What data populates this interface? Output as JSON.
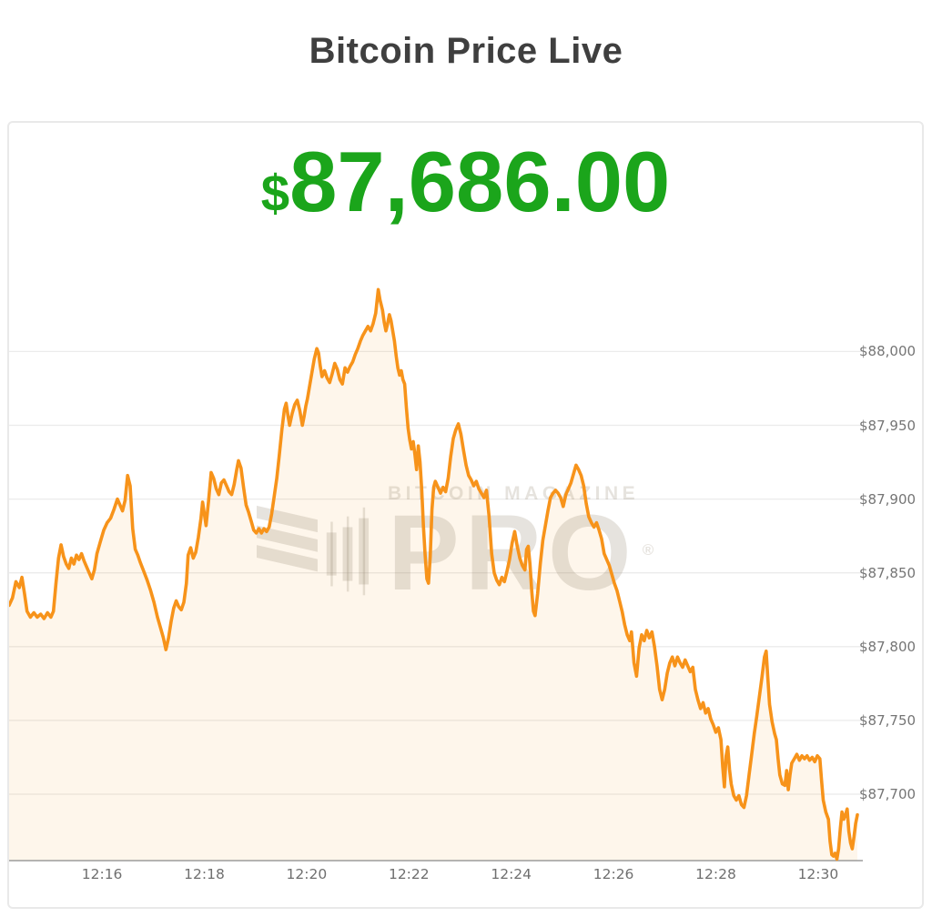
{
  "page": {
    "title": "Bitcoin Price Live"
  },
  "price": {
    "currency_symbol": "$",
    "value": "87,686.00"
  },
  "watermark": {
    "line1": "BITCOIN MAGAZINE",
    "line2": "PRO",
    "registered": "®"
  },
  "colors": {
    "price_green": "#1ba51b",
    "line_orange": "#f7931a",
    "area_fill": "rgba(247,147,26,0.085)",
    "grid": "#ebebeb",
    "axis": "#9b9b9b",
    "tick_text": "#757575",
    "title_text": "#3f3f3f"
  },
  "chart_data": {
    "type": "line",
    "title": "Bitcoin Price Live",
    "current_price_usd": 87686.0,
    "x_axis": {
      "unit": "time (HH:MM), seconds counted from 12:14:00",
      "t_domain": [
        11,
        1006
      ],
      "ticks": [
        {
          "t": 120,
          "label": "12:16"
        },
        {
          "t": 240,
          "label": "12:18"
        },
        {
          "t": 360,
          "label": "12:20"
        },
        {
          "t": 480,
          "label": "12:22"
        },
        {
          "t": 600,
          "label": "12:24"
        },
        {
          "t": 720,
          "label": "12:26"
        },
        {
          "t": 840,
          "label": "12:28"
        },
        {
          "t": 960,
          "label": "12:30"
        }
      ]
    },
    "y_axis": {
      "unit": "USD",
      "price_at_top": 88155,
      "price_at_bottom": 87655,
      "ticks": [
        {
          "value": 88000,
          "label": "$88,000"
        },
        {
          "value": 87950,
          "label": "$87,950"
        },
        {
          "value": 87900,
          "label": "$87,900"
        },
        {
          "value": 87850,
          "label": "$87,850"
        },
        {
          "value": 87800,
          "label": "$87,800"
        },
        {
          "value": 87750,
          "label": "$87,750"
        },
        {
          "value": 87700,
          "label": "$87,700"
        }
      ]
    },
    "legend": "none",
    "grid": "horizontal-only",
    "points": [
      [
        11,
        87828
      ],
      [
        15,
        87833
      ],
      [
        19,
        87844
      ],
      [
        23,
        87840
      ],
      [
        26,
        87847
      ],
      [
        29,
        87836
      ],
      [
        32,
        87824
      ],
      [
        36,
        87820
      ],
      [
        40,
        87823
      ],
      [
        44,
        87820
      ],
      [
        48,
        87822
      ],
      [
        52,
        87819
      ],
      [
        56,
        87823
      ],
      [
        60,
        87820
      ],
      [
        63,
        87824
      ],
      [
        66,
        87843
      ],
      [
        69,
        87860
      ],
      [
        72,
        87869
      ],
      [
        75,
        87861
      ],
      [
        78,
        87856
      ],
      [
        81,
        87853
      ],
      [
        84,
        87860
      ],
      [
        87,
        87856
      ],
      [
        90,
        87862
      ],
      [
        93,
        87859
      ],
      [
        96,
        87863
      ],
      [
        99,
        87858
      ],
      [
        102,
        87854
      ],
      [
        105,
        87850
      ],
      [
        108,
        87846
      ],
      [
        111,
        87852
      ],
      [
        114,
        87863
      ],
      [
        118,
        87871
      ],
      [
        122,
        87879
      ],
      [
        126,
        87884
      ],
      [
        130,
        87887
      ],
      [
        134,
        87893
      ],
      [
        138,
        87900
      ],
      [
        141,
        87896
      ],
      [
        144,
        87892
      ],
      [
        147,
        87899
      ],
      [
        150,
        87916
      ],
      [
        153,
        87909
      ],
      [
        156,
        87880
      ],
      [
        159,
        87866
      ],
      [
        162,
        87862
      ],
      [
        165,
        87857
      ],
      [
        169,
        87851
      ],
      [
        173,
        87845
      ],
      [
        177,
        87838
      ],
      [
        181,
        87830
      ],
      [
        185,
        87820
      ],
      [
        189,
        87812
      ],
      [
        192,
        87806
      ],
      [
        195,
        87798
      ],
      [
        198,
        87806
      ],
      [
        201,
        87817
      ],
      [
        204,
        87826
      ],
      [
        207,
        87831
      ],
      [
        210,
        87827
      ],
      [
        213,
        87825
      ],
      [
        216,
        87830
      ],
      [
        219,
        87843
      ],
      [
        221,
        87862
      ],
      [
        224,
        87867
      ],
      [
        227,
        87860
      ],
      [
        230,
        87864
      ],
      [
        233,
        87874
      ],
      [
        236,
        87887
      ],
      [
        238,
        87898
      ],
      [
        240,
        87890
      ],
      [
        242,
        87882
      ],
      [
        245,
        87899
      ],
      [
        248,
        87918
      ],
      [
        251,
        87914
      ],
      [
        254,
        87907
      ],
      [
        257,
        87903
      ],
      [
        260,
        87911
      ],
      [
        263,
        87913
      ],
      [
        266,
        87909
      ],
      [
        269,
        87905
      ],
      [
        272,
        87903
      ],
      [
        275,
        87910
      ],
      [
        278,
        87920
      ],
      [
        280,
        87926
      ],
      [
        283,
        87921
      ],
      [
        286,
        87908
      ],
      [
        289,
        87896
      ],
      [
        292,
        87891
      ],
      [
        295,
        87885
      ],
      [
        298,
        87879
      ],
      [
        301,
        87877
      ],
      [
        304,
        87880
      ],
      [
        307,
        87877
      ],
      [
        310,
        87880
      ],
      [
        313,
        87878
      ],
      [
        316,
        87881
      ],
      [
        319,
        87890
      ],
      [
        322,
        87902
      ],
      [
        325,
        87914
      ],
      [
        328,
        87930
      ],
      [
        331,
        87947
      ],
      [
        334,
        87961
      ],
      [
        336,
        87965
      ],
      [
        338,
        87957
      ],
      [
        340,
        87950
      ],
      [
        343,
        87958
      ],
      [
        346,
        87964
      ],
      [
        349,
        87967
      ],
      [
        352,
        87960
      ],
      [
        355,
        87950
      ],
      [
        357,
        87956
      ],
      [
        359,
        87963
      ],
      [
        361,
        87968
      ],
      [
        363,
        87975
      ],
      [
        366,
        87985
      ],
      [
        369,
        87995
      ],
      [
        372,
        88002
      ],
      [
        374,
        87999
      ],
      [
        376,
        87990
      ],
      [
        378,
        87983
      ],
      [
        381,
        87987
      ],
      [
        384,
        87982
      ],
      [
        387,
        87979
      ],
      [
        390,
        87985
      ],
      [
        393,
        87992
      ],
      [
        396,
        87988
      ],
      [
        399,
        87981
      ],
      [
        402,
        87978
      ],
      [
        405,
        87989
      ],
      [
        408,
        87986
      ],
      [
        411,
        87990
      ],
      [
        414,
        87993
      ],
      [
        417,
        87998
      ],
      [
        420,
        88002
      ],
      [
        423,
        88007
      ],
      [
        426,
        88011
      ],
      [
        429,
        88014
      ],
      [
        432,
        88017
      ],
      [
        435,
        88014
      ],
      [
        438,
        88019
      ],
      [
        441,
        88026
      ],
      [
        444,
        88042
      ],
      [
        446,
        88035
      ],
      [
        449,
        88028
      ],
      [
        451,
        88020
      ],
      [
        453,
        88014
      ],
      [
        455,
        88019
      ],
      [
        457,
        88025
      ],
      [
        459,
        88021
      ],
      [
        461,
        88014
      ],
      [
        463,
        88007
      ],
      [
        465,
        87997
      ],
      [
        467,
        87989
      ],
      [
        469,
        87984
      ],
      [
        471,
        87987
      ],
      [
        473,
        87981
      ],
      [
        475,
        87978
      ],
      [
        477,
        87962
      ],
      [
        479,
        87948
      ],
      [
        481,
        87940
      ],
      [
        483,
        87934
      ],
      [
        485,
        87939
      ],
      [
        487,
        87930
      ],
      [
        489,
        87920
      ],
      [
        491,
        87936
      ],
      [
        493,
        87925
      ],
      [
        495,
        87906
      ],
      [
        497,
        87882
      ],
      [
        499,
        87862
      ],
      [
        501,
        87846
      ],
      [
        503,
        87843
      ],
      [
        505,
        87861
      ],
      [
        507,
        87893
      ],
      [
        509,
        87908
      ],
      [
        511,
        87912
      ],
      [
        514,
        87908
      ],
      [
        517,
        87904
      ],
      [
        520,
        87908
      ],
      [
        523,
        87905
      ],
      [
        526,
        87914
      ],
      [
        529,
        87929
      ],
      [
        532,
        87941
      ],
      [
        535,
        87947
      ],
      [
        538,
        87951
      ],
      [
        541,
        87944
      ],
      [
        544,
        87933
      ],
      [
        547,
        87923
      ],
      [
        550,
        87916
      ],
      [
        553,
        87913
      ],
      [
        556,
        87909
      ],
      [
        559,
        87912
      ],
      [
        562,
        87907
      ],
      [
        565,
        87904
      ],
      [
        568,
        87901
      ],
      [
        571,
        87906
      ],
      [
        574,
        87888
      ],
      [
        577,
        87863
      ],
      [
        580,
        87850
      ],
      [
        583,
        87845
      ],
      [
        586,
        87842
      ],
      [
        589,
        87847
      ],
      [
        592,
        87844
      ],
      [
        595,
        87851
      ],
      [
        598,
        87859
      ],
      [
        601,
        87870
      ],
      [
        604,
        87878
      ],
      [
        607,
        87868
      ],
      [
        610,
        87860
      ],
      [
        613,
        87855
      ],
      [
        616,
        87852
      ],
      [
        618,
        87866
      ],
      [
        620,
        87868
      ],
      [
        622,
        87856
      ],
      [
        624,
        87838
      ],
      [
        626,
        87824
      ],
      [
        628,
        87821
      ],
      [
        631,
        87836
      ],
      [
        634,
        87856
      ],
      [
        637,
        87872
      ],
      [
        640,
        87882
      ],
      [
        643,
        87892
      ],
      [
        646,
        87901
      ],
      [
        649,
        87904
      ],
      [
        652,
        87906
      ],
      [
        655,
        87904
      ],
      [
        658,
        87901
      ],
      [
        661,
        87895
      ],
      [
        664,
        87903
      ],
      [
        667,
        87907
      ],
      [
        670,
        87911
      ],
      [
        673,
        87917
      ],
      [
        676,
        87923
      ],
      [
        679,
        87920
      ],
      [
        682,
        87916
      ],
      [
        685,
        87909
      ],
      [
        688,
        87897
      ],
      [
        691,
        87888
      ],
      [
        694,
        87884
      ],
      [
        697,
        87881
      ],
      [
        700,
        87884
      ],
      [
        703,
        87879
      ],
      [
        706,
        87873
      ],
      [
        709,
        87863
      ],
      [
        712,
        87859
      ],
      [
        715,
        87855
      ],
      [
        718,
        87849
      ],
      [
        721,
        87843
      ],
      [
        724,
        87838
      ],
      [
        727,
        87831
      ],
      [
        730,
        87824
      ],
      [
        733,
        87815
      ],
      [
        736,
        87808
      ],
      [
        739,
        87804
      ],
      [
        741,
        87810
      ],
      [
        744,
        87789
      ],
      [
        747,
        87780
      ],
      [
        750,
        87799
      ],
      [
        753,
        87808
      ],
      [
        756,
        87804
      ],
      [
        759,
        87811
      ],
      [
        762,
        87806
      ],
      [
        765,
        87810
      ],
      [
        768,
        87800
      ],
      [
        771,
        87787
      ],
      [
        774,
        87771
      ],
      [
        777,
        87764
      ],
      [
        780,
        87771
      ],
      [
        783,
        87782
      ],
      [
        786,
        87789
      ],
      [
        789,
        87793
      ],
      [
        792,
        87787
      ],
      [
        795,
        87793
      ],
      [
        798,
        87789
      ],
      [
        801,
        87786
      ],
      [
        804,
        87791
      ],
      [
        807,
        87787
      ],
      [
        810,
        87783
      ],
      [
        813,
        87786
      ],
      [
        816,
        87771
      ],
      [
        819,
        87764
      ],
      [
        822,
        87758
      ],
      [
        825,
        87762
      ],
      [
        828,
        87755
      ],
      [
        831,
        87758
      ],
      [
        834,
        87751
      ],
      [
        837,
        87747
      ],
      [
        840,
        87742
      ],
      [
        843,
        87745
      ],
      [
        846,
        87737
      ],
      [
        848,
        87719
      ],
      [
        850,
        87705
      ],
      [
        852,
        87726
      ],
      [
        854,
        87732
      ],
      [
        856,
        87717
      ],
      [
        858,
        87707
      ],
      [
        861,
        87699
      ],
      [
        864,
        87696
      ],
      [
        867,
        87699
      ],
      [
        870,
        87693
      ],
      [
        873,
        87691
      ],
      [
        876,
        87699
      ],
      [
        879,
        87713
      ],
      [
        882,
        87727
      ],
      [
        885,
        87741
      ],
      [
        888,
        87753
      ],
      [
        891,
        87766
      ],
      [
        894,
        87779
      ],
      [
        897,
        87793
      ],
      [
        899,
        87797
      ],
      [
        901,
        87779
      ],
      [
        903,
        87761
      ],
      [
        906,
        87749
      ],
      [
        909,
        87741
      ],
      [
        911,
        87737
      ],
      [
        913,
        87724
      ],
      [
        915,
        87713
      ],
      [
        918,
        87707
      ],
      [
        921,
        87706
      ],
      [
        923,
        87716
      ],
      [
        925,
        87703
      ],
      [
        927,
        87713
      ],
      [
        929,
        87721
      ],
      [
        932,
        87724
      ],
      [
        935,
        87727
      ],
      [
        938,
        87723
      ],
      [
        941,
        87726
      ],
      [
        944,
        87724
      ],
      [
        947,
        87726
      ],
      [
        950,
        87723
      ],
      [
        953,
        87725
      ],
      [
        956,
        87722
      ],
      [
        959,
        87726
      ],
      [
        962,
        87724
      ],
      [
        964,
        87709
      ],
      [
        966,
        87696
      ],
      [
        969,
        87688
      ],
      [
        972,
        87683
      ],
      [
        974,
        87668
      ],
      [
        976,
        87659
      ],
      [
        978,
        87658
      ],
      [
        980,
        87660
      ],
      [
        982,
        87656
      ],
      [
        984,
        87663
      ],
      [
        986,
        87677
      ],
      [
        988,
        87688
      ],
      [
        990,
        87683
      ],
      [
        992,
        87686
      ],
      [
        994,
        87690
      ],
      [
        996,
        87675
      ],
      [
        998,
        87667
      ],
      [
        1000,
        87663
      ],
      [
        1002,
        87671
      ],
      [
        1004,
        87680
      ],
      [
        1006,
        87686
      ]
    ]
  }
}
